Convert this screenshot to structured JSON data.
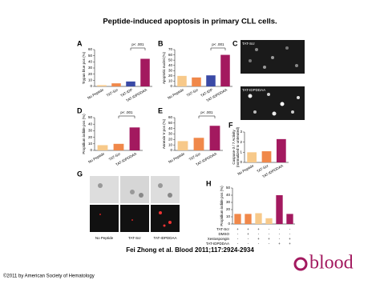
{
  "title": "Peptide-induced apoptosis in primary CLL cells.",
  "chart_data": [
    {
      "type": "bar",
      "panel": "A",
      "ylabel": "Trypan blue pos (%)",
      "categories": [
        "No Peptide",
        "TAT-Scr",
        "TAT-IDP",
        "TAT-IDPDDAA"
      ],
      "values": [
        2,
        5,
        8,
        45
      ],
      "colors": [
        "#f7c98a",
        "#f0884a",
        "#3a4aa6",
        "#a3195f"
      ],
      "ylim": [
        0,
        60
      ],
      "yticks": [
        0,
        10,
        20,
        30,
        40,
        50,
        60
      ],
      "annotation": "p< .001"
    },
    {
      "type": "bar",
      "panel": "B",
      "ylabel": "Apoptotic nuclei (%)",
      "categories": [
        "No Peptide",
        "TAT-Scr",
        "TAT-IDP",
        "TAT-IDPDDAA"
      ],
      "values": [
        20,
        17,
        21,
        60
      ],
      "colors": [
        "#f7c98a",
        "#f0884a",
        "#3a4aa6",
        "#a3195f"
      ],
      "ylim": [
        0,
        70
      ],
      "yticks": [
        0,
        10,
        20,
        30,
        40,
        50,
        60,
        70
      ],
      "annotation": "p< .001"
    },
    {
      "type": "bar",
      "panel": "D",
      "ylabel": "Propidium iodide pos (%)",
      "categories": [
        "No Peptide",
        "TAT-Scr",
        "TAT-IDPDDAA"
      ],
      "values": [
        8,
        10,
        35
      ],
      "colors": [
        "#f7c98a",
        "#f0884a",
        "#a3195f"
      ],
      "ylim": [
        0,
        50
      ],
      "yticks": [
        0,
        10,
        20,
        30,
        40,
        50
      ],
      "annotation": "p< .001"
    },
    {
      "type": "bar",
      "panel": "E",
      "ylabel": "Annexin V pos (%)",
      "categories": [
        "No Peptide",
        "TAT-Scr",
        "TAT-IDPDDAA"
      ],
      "values": [
        17,
        23,
        45
      ],
      "colors": [
        "#f7c98a",
        "#f0884a",
        "#a3195f"
      ],
      "ylim": [
        0,
        60
      ],
      "yticks": [
        0,
        10,
        20,
        30,
        40,
        50,
        60
      ],
      "annotation": "p< .001"
    },
    {
      "type": "bar",
      "panel": "F",
      "ylabel": "Caspase-3 / 7 Activity",
      "ylabel2": "(normalized to untreated)",
      "categories": [
        "No Peptide",
        "TAT-Scr",
        "TAT-IDPDDAA"
      ],
      "values": [
        1,
        1.1,
        2.3
      ],
      "colors": [
        "#f7c98a",
        "#f0884a",
        "#a3195f"
      ],
      "ylim": [
        0,
        3
      ],
      "yticks": [
        0,
        1,
        2,
        3
      ]
    },
    {
      "type": "bar",
      "panel": "H",
      "ylabel": "Propidium iodide pos (%)",
      "values": [
        14,
        14,
        15,
        8,
        40,
        14
      ],
      "colors": [
        "#f0884a",
        "#f0884a",
        "#f7c98a",
        "#f7c98a",
        "#a3195f",
        "#a3195f"
      ],
      "ylim": [
        0,
        50
      ],
      "yticks": [
        0,
        10,
        20,
        30,
        40,
        50
      ],
      "conditions": [
        {
          "name": "TAT-Scr",
          "marks": [
            "+",
            "+",
            "+",
            "-",
            "-",
            "-"
          ]
        },
        {
          "name": "DMSO",
          "marks": [
            "-",
            "+",
            "-",
            "-",
            "-",
            "-"
          ]
        },
        {
          "name": "Xestospongin",
          "marks": [
            "-",
            "-",
            "+",
            "+",
            "-",
            "+"
          ]
        },
        {
          "name": "TAT-IDPDDAA",
          "marks": [
            "-",
            "-",
            "-",
            "-",
            "+",
            "+"
          ]
        }
      ]
    }
  ],
  "images": {
    "C": {
      "panel": "C",
      "labels": [
        "TAT-Scr",
        "TAT-IDPDDAA"
      ]
    },
    "G": {
      "panel": "G",
      "labels": [
        "No Peptide",
        "TAT-Scr",
        "TAT-IDPDDAA"
      ]
    }
  },
  "citation": "Fei Zhong et al. Blood 2011;117:2924-2934",
  "copyright": "©2011 by American Society of Hematology",
  "logo": "blood"
}
